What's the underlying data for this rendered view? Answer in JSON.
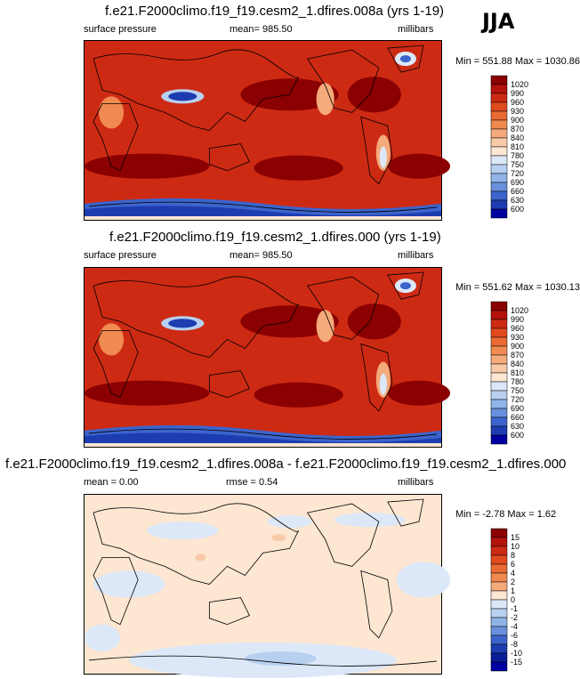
{
  "season": "JJA",
  "colors": {
    "high": "#8b0000",
    "low": "#0000a0",
    "neutral": "#fde6d2",
    "land": "#000000"
  },
  "panels": [
    {
      "title": "f.e21.F2000climo.f19_f19.cesm2_1.dfires.008a (yrs 1-19)",
      "left_label": "surface pressure",
      "center_label": "mean= 985.50",
      "right_label": "millibars",
      "minmax": "Min = 551.88 Max = 1030.86"
    },
    {
      "title": "f.e21.F2000climo.f19_f19.cesm2_1.dfires.000 (yrs 1-19)",
      "left_label": "surface pressure",
      "center_label": "mean= 985.50",
      "right_label": "millibars",
      "minmax": "Min = 551.62 Max = 1030.13"
    },
    {
      "title": "f.e21.F2000climo.f19_f19.cesm2_1.dfires.008a - f.e21.F2000climo.f19_f19.cesm2_1.dfires.000",
      "left_label": "mean =   0.00",
      "center_label": "rmse =   0.54",
      "right_label": "millibars",
      "minmax": "Min =  -2.78 Max =   1.62"
    }
  ],
  "chart_data": [
    {
      "type": "heatmap",
      "title": "f.e21.F2000climo.f19_f19.cesm2_1.dfires.008a (yrs 1-19)",
      "variable": "surface pressure",
      "units": "millibars",
      "mean": 985.5,
      "min": 551.88,
      "max": 1030.86,
      "colorbar_levels": [
        1020,
        990,
        960,
        930,
        900,
        870,
        840,
        810,
        780,
        750,
        720,
        690,
        660,
        630,
        600
      ],
      "colorbar_colors": [
        "#8b0000",
        "#b4120c",
        "#cd2a14",
        "#e04a1e",
        "#ea6a34",
        "#f08a50",
        "#f4aa7a",
        "#f8caa8",
        "#fde6d2",
        "#dce8f8",
        "#b8d0f0",
        "#90b4e8",
        "#6890dc",
        "#3c64cc",
        "#1c3cb0",
        "#0000a0"
      ]
    },
    {
      "type": "heatmap",
      "title": "f.e21.F2000climo.f19_f19.cesm2_1.dfires.000 (yrs 1-19)",
      "variable": "surface pressure",
      "units": "millibars",
      "mean": 985.5,
      "min": 551.62,
      "max": 1030.13,
      "colorbar_levels": [
        1020,
        990,
        960,
        930,
        900,
        870,
        840,
        810,
        780,
        750,
        720,
        690,
        660,
        630,
        600
      ],
      "colorbar_colors": [
        "#8b0000",
        "#b4120c",
        "#cd2a14",
        "#e04a1e",
        "#ea6a34",
        "#f08a50",
        "#f4aa7a",
        "#f8caa8",
        "#fde6d2",
        "#dce8f8",
        "#b8d0f0",
        "#90b4e8",
        "#6890dc",
        "#3c64cc",
        "#1c3cb0",
        "#0000a0"
      ]
    },
    {
      "type": "heatmap",
      "title": "f.e21.F2000climo.f19_f19.cesm2_1.dfires.008a - f.e21.F2000climo.f19_f19.cesm2_1.dfires.000",
      "units": "millibars",
      "mean": 0.0,
      "rmse": 0.54,
      "min": -2.78,
      "max": 1.62,
      "colorbar_levels": [
        15,
        10,
        8,
        6,
        4,
        2,
        1,
        0,
        -1,
        -2,
        -4,
        -6,
        -8,
        -10,
        -15
      ],
      "colorbar_colors": [
        "#8b0000",
        "#b4120c",
        "#cd2a14",
        "#e04a1e",
        "#ea6a34",
        "#f08a50",
        "#f4aa7a",
        "#fde6d2",
        "#dce8f8",
        "#b8d0f0",
        "#90b4e8",
        "#6890dc",
        "#3c64cc",
        "#1c3cb0",
        "#0a1e98",
        "#0000a0"
      ]
    }
  ]
}
